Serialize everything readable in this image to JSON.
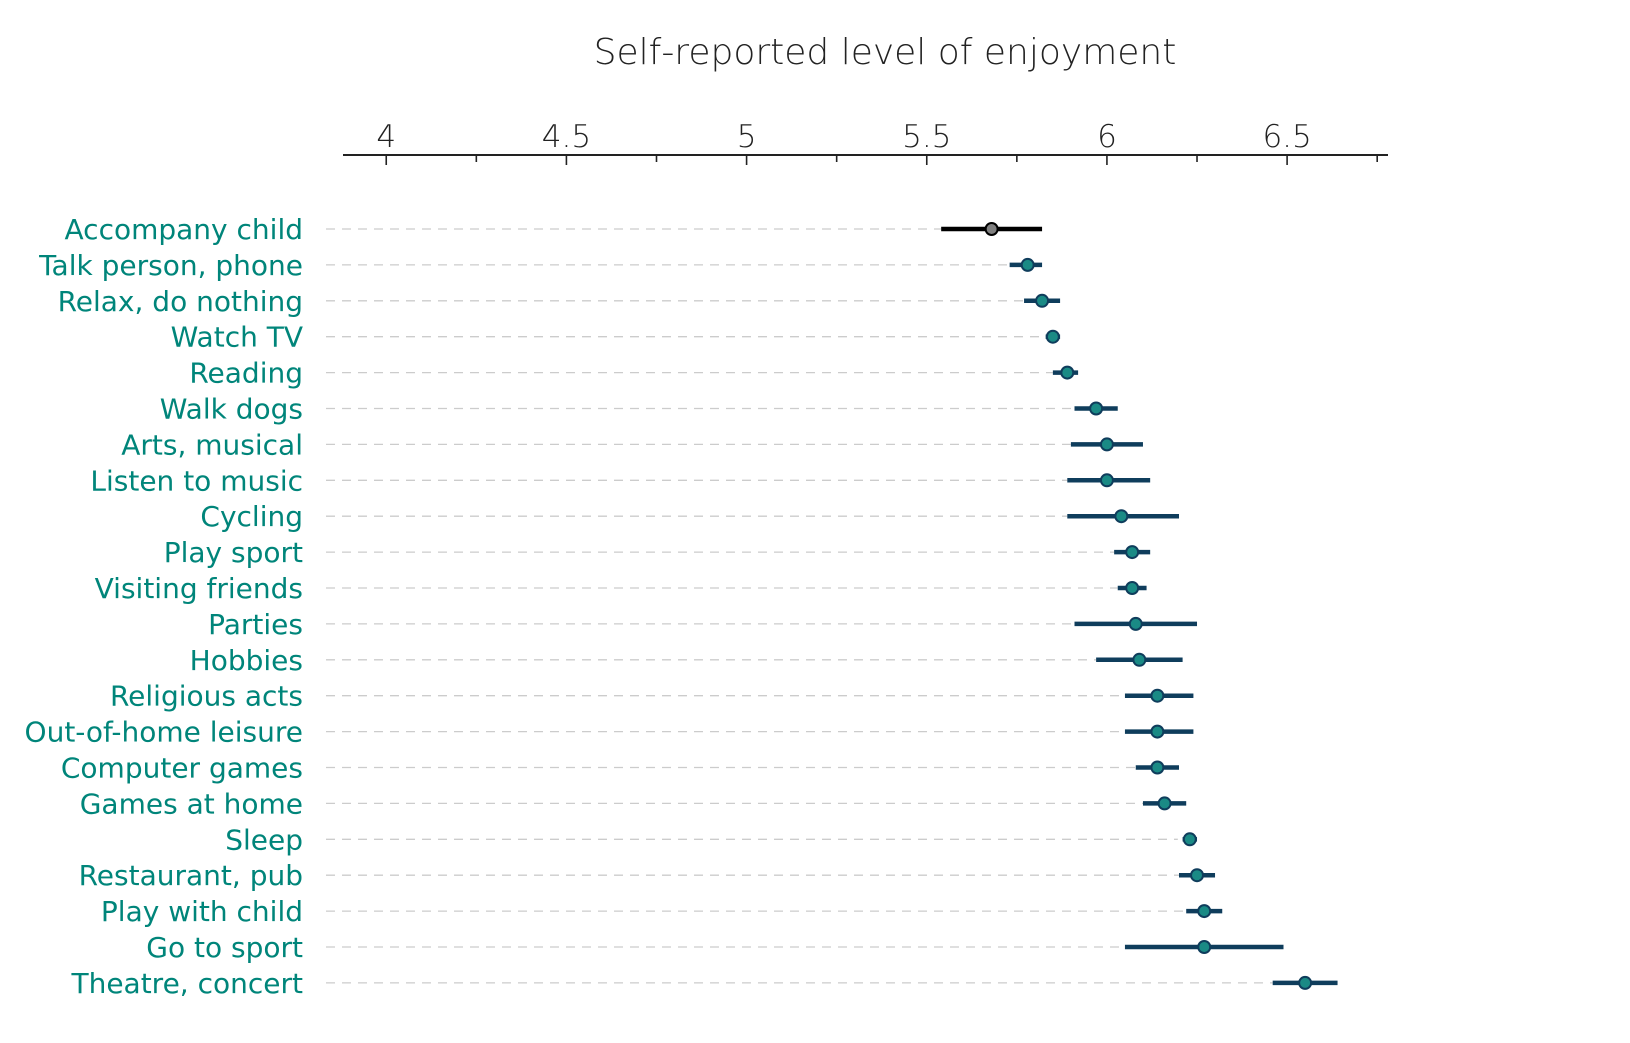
{
  "chart_data": {
    "type": "dot-plot with error bars",
    "title": "Self-reported level of enjoyment",
    "xlim": [
      3.88,
      6.78
    ],
    "x_ticks": [
      4,
      4.5,
      5,
      5.5,
      6,
      6.5
    ],
    "x_tick_labels": [
      "4",
      "4.5",
      "5",
      "5.5",
      "6",
      "6.5"
    ],
    "x_minor_step": 0.25,
    "grid": "dashed horizontal guide lines",
    "colors": {
      "label": "#00857a",
      "bar": "#0f3d5c",
      "bar_first": "#000000",
      "dot": "#1a8a85",
      "dot_first": "#808080",
      "dot_stroke": "#0f3d5c",
      "guide": "#cccccc",
      "axis": "#222222"
    },
    "series": [
      {
        "category": "Accompany child",
        "value": 5.68,
        "low": 5.54,
        "high": 5.82
      },
      {
        "category": "Talk person, phone",
        "value": 5.78,
        "low": 5.73,
        "high": 5.82
      },
      {
        "category": "Relax, do nothing",
        "value": 5.82,
        "low": 5.77,
        "high": 5.87
      },
      {
        "category": "Watch TV",
        "value": 5.85,
        "low": 5.83,
        "high": 5.87
      },
      {
        "category": "Reading",
        "value": 5.89,
        "low": 5.85,
        "high": 5.92
      },
      {
        "category": "Walk dogs",
        "value": 5.97,
        "low": 5.91,
        "high": 6.03
      },
      {
        "category": "Arts, musical",
        "value": 6.0,
        "low": 5.9,
        "high": 6.1
      },
      {
        "category": "Listen to music",
        "value": 6.0,
        "low": 5.89,
        "high": 6.12
      },
      {
        "category": "Cycling",
        "value": 6.04,
        "low": 5.89,
        "high": 6.2
      },
      {
        "category": "Play sport",
        "value": 6.07,
        "low": 6.02,
        "high": 6.12
      },
      {
        "category": "Visiting friends",
        "value": 6.07,
        "low": 6.03,
        "high": 6.11
      },
      {
        "category": "Parties",
        "value": 6.08,
        "low": 5.91,
        "high": 6.25
      },
      {
        "category": "Hobbies",
        "value": 6.09,
        "low": 5.97,
        "high": 6.21
      },
      {
        "category": "Religious acts",
        "value": 6.14,
        "low": 6.05,
        "high": 6.24
      },
      {
        "category": "Out-of-home leisure",
        "value": 6.14,
        "low": 6.05,
        "high": 6.24
      },
      {
        "category": "Computer games",
        "value": 6.14,
        "low": 6.08,
        "high": 6.2
      },
      {
        "category": "Games at home",
        "value": 6.16,
        "low": 6.1,
        "high": 6.22
      },
      {
        "category": "Sleep",
        "value": 6.23,
        "low": 6.21,
        "high": 6.25
      },
      {
        "category": "Restaurant, pub",
        "value": 6.25,
        "low": 6.2,
        "high": 6.3
      },
      {
        "category": "Play with child",
        "value": 6.27,
        "low": 6.22,
        "high": 6.32
      },
      {
        "category": "Go to sport",
        "value": 6.27,
        "low": 6.05,
        "high": 6.49
      },
      {
        "category": "Theatre, concert",
        "value": 6.55,
        "low": 6.46,
        "high": 6.64
      }
    ]
  }
}
